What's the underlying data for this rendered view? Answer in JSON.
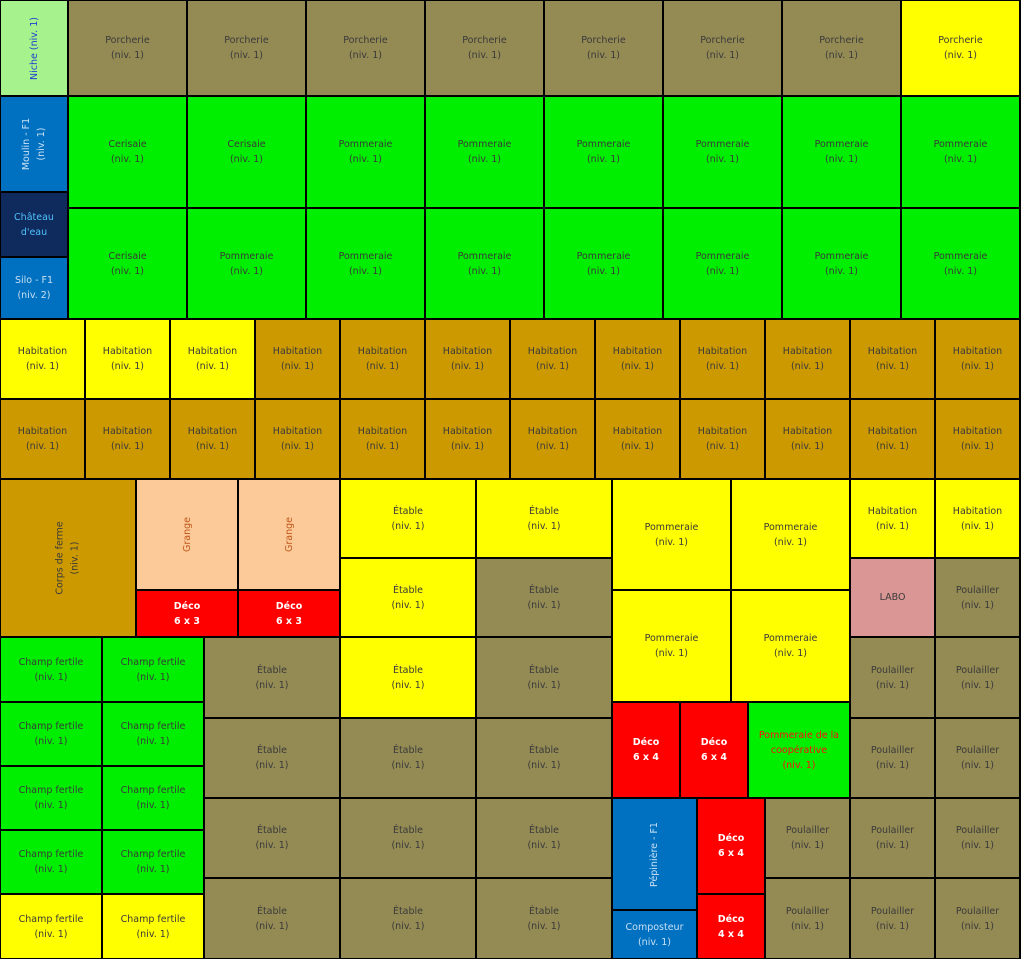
{
  "cells": [
    [
      "Niche (niv. 1)"
    ],
    [
      "Porcherie",
      "(niv. 1)"
    ],
    [
      "Porcherie",
      "(niv. 1)"
    ],
    [
      "Porcherie",
      "(niv. 1)"
    ],
    [
      "Porcherie",
      "(niv. 1)"
    ],
    [
      "Porcherie",
      "(niv. 1)"
    ],
    [
      "Porcherie",
      "(niv. 1)"
    ],
    [
      "Porcherie",
      "(niv. 1)"
    ],
    [
      "Porcherie",
      "(niv. 1)"
    ],
    [
      "Moulin - F1",
      "(niv. 1)"
    ],
    [
      "Château",
      "d'eau"
    ],
    [
      "Silo - F1",
      "(niv. 2)"
    ],
    [
      "Cerisaie",
      "(niv. 1)"
    ],
    [
      "Cerisaie",
      "(niv. 1)"
    ],
    [
      "Pommeraie",
      "(niv. 1)"
    ],
    [
      "Pommeraie",
      "(niv. 1)"
    ],
    [
      "Pommeraie",
      "(niv. 1)"
    ],
    [
      "Pommeraie",
      "(niv. 1)"
    ],
    [
      "Pommeraie",
      "(niv. 1)"
    ],
    [
      "Pommeraie",
      "(niv. 1)"
    ],
    [
      "Cerisaie",
      "(niv. 1)"
    ],
    [
      "Pommeraie",
      "(niv. 1)"
    ],
    [
      "Pommeraie",
      "(niv. 1)"
    ],
    [
      "Pommeraie",
      "(niv. 1)"
    ],
    [
      "Pommeraie",
      "(niv. 1)"
    ],
    [
      "Pommeraie",
      "(niv. 1)"
    ],
    [
      "Pommeraie",
      "(niv. 1)"
    ],
    [
      "Pommeraie",
      "(niv. 1)"
    ],
    [
      "Habitation",
      "(niv. 1)"
    ],
    [
      "Habitation",
      "(niv. 1)"
    ],
    [
      "Habitation",
      "(niv. 1)"
    ],
    [
      "Habitation",
      "(niv. 1)"
    ],
    [
      "Habitation",
      "(niv. 1)"
    ],
    [
      "Habitation",
      "(niv. 1)"
    ],
    [
      "Habitation",
      "(niv. 1)"
    ],
    [
      "Habitation",
      "(niv. 1)"
    ],
    [
      "Habitation",
      "(niv. 1)"
    ],
    [
      "Habitation",
      "(niv. 1)"
    ],
    [
      "Habitation",
      "(niv. 1)"
    ],
    [
      "Habitation",
      "(niv. 1)"
    ],
    [
      "Habitation",
      "(niv. 1)"
    ],
    [
      "Habitation",
      "(niv. 1)"
    ],
    [
      "Habitation",
      "(niv. 1)"
    ],
    [
      "Habitation",
      "(niv. 1)"
    ],
    [
      "Habitation",
      "(niv. 1)"
    ],
    [
      "Habitation",
      "(niv. 1)"
    ],
    [
      "Habitation",
      "(niv. 1)"
    ],
    [
      "Habitation",
      "(niv. 1)"
    ],
    [
      "Habitation",
      "(niv. 1)"
    ],
    [
      "Habitation",
      "(niv. 1)"
    ],
    [
      "Habitation",
      "(niv. 1)"
    ],
    [
      "Habitation",
      "(niv. 1)"
    ],
    [
      "Corps de ferme",
      "(niv. 1)"
    ],
    [
      "Grange"
    ],
    [
      "Grange"
    ],
    [
      "Déco",
      "6 x 3"
    ],
    [
      "Déco",
      "6 x 3"
    ],
    [
      "Étable",
      "(niv. 1)"
    ],
    [
      "Étable",
      "(niv. 1)"
    ],
    [
      "Étable",
      "(niv. 1)"
    ],
    [
      "Étable",
      "(niv. 1)"
    ],
    [
      "Pommeraie",
      "(niv. 1)"
    ],
    [
      "Pommeraie",
      "(niv. 1)"
    ],
    [
      "Pommeraie",
      "(niv. 1)"
    ],
    [
      "Pommeraie",
      "(niv. 1)"
    ],
    [
      "Habitation",
      "(niv. 1)"
    ],
    [
      "Habitation",
      "(niv. 1)"
    ],
    [
      "LABO"
    ],
    [
      "Poulailler",
      "(niv. 1)"
    ],
    [
      "Champ fertile",
      "(niv. 1)"
    ],
    [
      "Champ fertile",
      "(niv. 1)"
    ],
    [
      "Champ fertile",
      "(niv. 1)"
    ],
    [
      "Champ fertile",
      "(niv. 1)"
    ],
    [
      "Champ fertile",
      "(niv. 1)"
    ],
    [
      "Champ fertile",
      "(niv. 1)"
    ],
    [
      "Champ fertile",
      "(niv. 1)"
    ],
    [
      "Champ fertile",
      "(niv. 1)"
    ],
    [
      "Champ fertile",
      "(niv. 1)"
    ],
    [
      "Champ fertile",
      "(niv. 1)"
    ],
    [
      "Étable",
      "(niv. 1)"
    ],
    [
      "Étable",
      "(niv. 1)"
    ],
    [
      "Étable",
      "(niv. 1)"
    ],
    [
      "Étable",
      "(niv. 1)"
    ],
    [
      "Étable",
      "(niv. 1)"
    ],
    [
      "Étable",
      "(niv. 1)"
    ],
    [
      "Étable",
      "(niv. 1)"
    ],
    [
      "Étable",
      "(niv. 1)"
    ],
    [
      "Étable",
      "(niv. 1)"
    ],
    [
      "Étable",
      "(niv. 1)"
    ],
    [
      "Étable",
      "(niv. 1)"
    ],
    [
      "Étable",
      "(niv. 1)"
    ],
    [
      "Déco",
      "6 x 4"
    ],
    [
      "Déco",
      "6 x 4"
    ],
    [
      "Pommeraie de la coopérative",
      "(niv. 1)"
    ],
    [
      "Poulailler",
      "(niv. 1)"
    ],
    [
      "Poulailler",
      "(niv. 1)"
    ],
    [
      "Poulailler",
      "(niv. 1)"
    ],
    [
      "Poulailler",
      "(niv. 1)"
    ],
    [
      "Pépinière - F1"
    ],
    [
      "Composteur",
      "(niv. 1)"
    ],
    [
      "Déco",
      "6 x 4"
    ],
    [
      "Déco",
      "4 x 4"
    ],
    [
      "Poulailler",
      "(niv. 1)"
    ],
    [
      "Poulailler",
      "(niv. 1)"
    ],
    [
      "Poulailler",
      "(niv. 1)"
    ],
    [
      "Poulailler",
      "(niv. 1)"
    ],
    [
      "Poulailler",
      "(niv. 1)"
    ],
    [
      "Poulailler",
      "(niv. 1)"
    ]
  ]
}
